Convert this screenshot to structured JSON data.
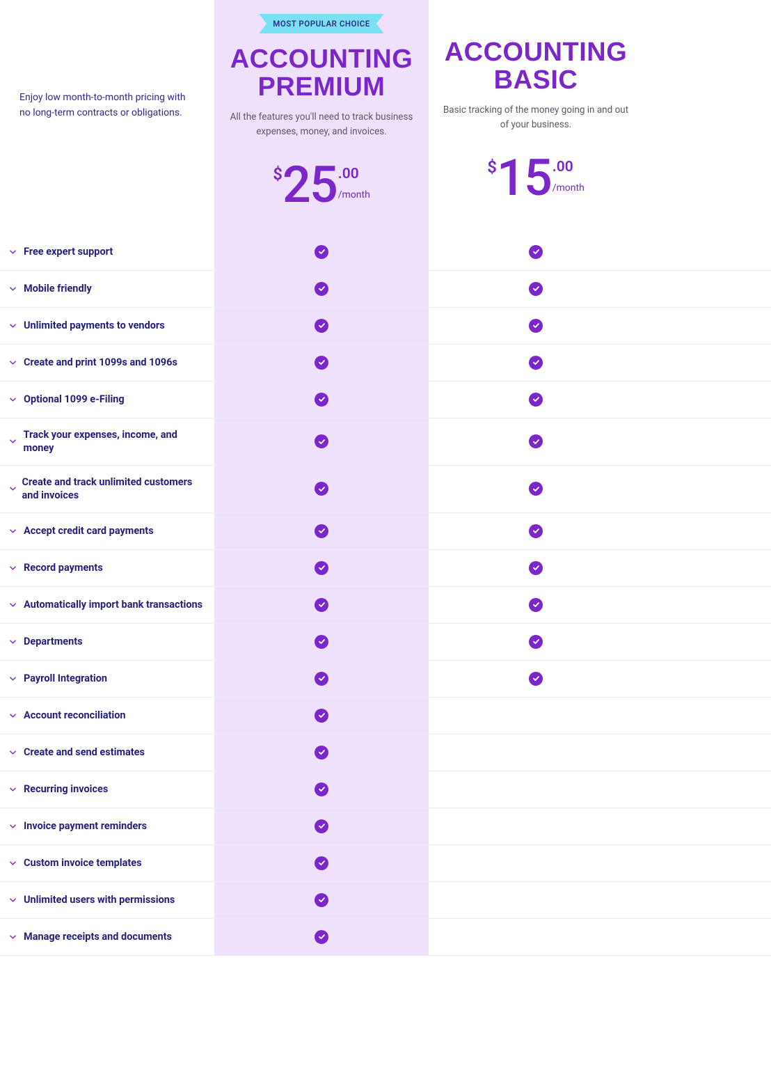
{
  "intro_text": "Enjoy low month-to-month pricing with no long-term contracts or obligations.",
  "plans": {
    "premium": {
      "badge": "MOST POPULAR CHOICE",
      "title": "ACCOUNTING PREMIUM",
      "desc": "All the features you'll need to track business expenses, money, and invoices.",
      "currency": "$",
      "price_main": "25",
      "price_cents": ".00",
      "period": "/month"
    },
    "basic": {
      "title": "ACCOUNTING BASIC",
      "desc": "Basic tracking of the money going in and out of your business.",
      "currency": "$",
      "price_main": "15",
      "price_cents": ".00",
      "period": "/month"
    }
  },
  "features": [
    {
      "label": "Free expert support",
      "premium": true,
      "basic": true
    },
    {
      "label": "Mobile friendly",
      "premium": true,
      "basic": true
    },
    {
      "label": "Unlimited payments to vendors",
      "premium": true,
      "basic": true
    },
    {
      "label": "Create and print 1099s and 1096s",
      "premium": true,
      "basic": true
    },
    {
      "label": "Optional 1099 e-Filing",
      "premium": true,
      "basic": true
    },
    {
      "label": "Track your expenses, income, and money",
      "premium": true,
      "basic": true
    },
    {
      "label": "Create and track unlimited customers and invoices",
      "premium": true,
      "basic": true
    },
    {
      "label": "Accept credit card payments",
      "premium": true,
      "basic": true
    },
    {
      "label": "Record payments",
      "premium": true,
      "basic": true
    },
    {
      "label": "Automatically import bank transactions",
      "premium": true,
      "basic": true
    },
    {
      "label": "Departments",
      "premium": true,
      "basic": true
    },
    {
      "label": "Payroll Integration",
      "premium": true,
      "basic": true
    },
    {
      "label": "Account reconciliation",
      "premium": true,
      "basic": false
    },
    {
      "label": "Create and send estimates",
      "premium": true,
      "basic": false
    },
    {
      "label": "Recurring invoices",
      "premium": true,
      "basic": false
    },
    {
      "label": "Invoice payment reminders",
      "premium": true,
      "basic": false
    },
    {
      "label": "Custom invoice templates",
      "premium": true,
      "basic": false
    },
    {
      "label": "Unlimited users with permissions",
      "premium": true,
      "basic": false
    },
    {
      "label": "Manage receipts and documents",
      "premium": true,
      "basic": false
    }
  ],
  "colors": {
    "brand_purple": "#7a26c9",
    "premium_bg": "#efe0fb",
    "badge_bg": "#7ae1f4",
    "text_dark": "#241f7d",
    "text_muted": "#5a5a66",
    "row_border": "#eceaf2"
  }
}
